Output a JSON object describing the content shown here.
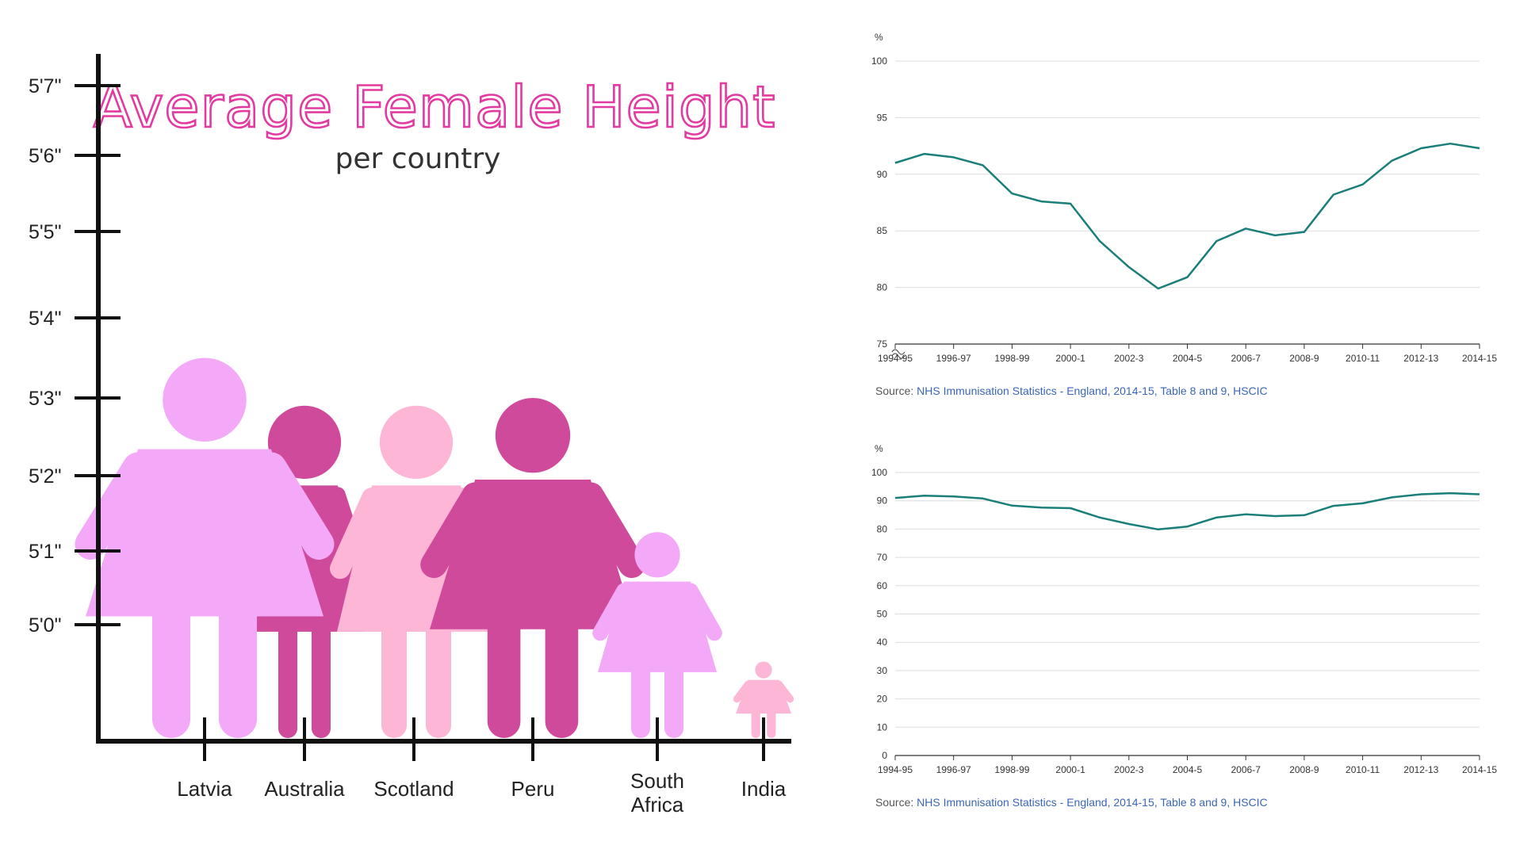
{
  "chart_data": [
    {
      "type": "bar",
      "title": "Average Female Height",
      "subtitle": "per country",
      "categories": [
        "Latvia",
        "Australia",
        "Scotland",
        "Peru",
        "South Africa",
        "India"
      ],
      "values": [
        5.35,
        5.29,
        5.29,
        5.3,
        5.125,
        4.95
      ],
      "y_tick_labels": [
        "5'0\"",
        "5'1\"",
        "5'2\"",
        "5'3\"",
        "5'4\"",
        "5'5\"",
        "5'6\"",
        "5'7\""
      ],
      "colors": [
        "#f3a8f8",
        "#cf4a9b",
        "#fdb6d6",
        "#cf4a9b",
        "#f3a8f8",
        "#fdb6d6"
      ],
      "grid": false
    },
    {
      "type": "line",
      "unit_label": "%",
      "x": [
        "1994-95",
        "1995-96",
        "1996-97",
        "1997-98",
        "1998-99",
        "1999-00",
        "2000-1",
        "2001-2",
        "2002-3",
        "2003-4",
        "2004-5",
        "2005-6",
        "2006-7",
        "2007-8",
        "2008-9",
        "2009-10",
        "2010-11",
        "2011-12",
        "2012-13",
        "2013-14",
        "2014-15"
      ],
      "x_tick_labels": [
        "1994-95",
        "1996-97",
        "1998-99",
        "2000-1",
        "2002-3",
        "2004-5",
        "2006-7",
        "2008-9",
        "2010-11",
        "2012-13",
        "2014-15"
      ],
      "y_ticks": [
        75,
        80,
        85,
        90,
        95,
        100
      ],
      "ylim": [
        75,
        100
      ],
      "axis_break": true,
      "series": [
        {
          "values": [
            91.0,
            91.8,
            91.5,
            90.8,
            88.3,
            87.6,
            87.4,
            84.1,
            81.8,
            79.9,
            80.9,
            84.1,
            85.2,
            84.6,
            84.9,
            88.2,
            89.1,
            91.2,
            92.3,
            92.7,
            92.3
          ]
        }
      ],
      "line_color": "#1a7f7a",
      "grid": true,
      "source_prefix": "Source: ",
      "source_link": "NHS Immunisation Statistics - England, 2014-15, Table 8 and 9, HSCIC"
    },
    {
      "type": "line",
      "unit_label": "%",
      "x": [
        "1994-95",
        "1995-96",
        "1996-97",
        "1997-98",
        "1998-99",
        "1999-00",
        "2000-1",
        "2001-2",
        "2002-3",
        "2003-4",
        "2004-5",
        "2005-6",
        "2006-7",
        "2007-8",
        "2008-9",
        "2009-10",
        "2010-11",
        "2011-12",
        "2012-13",
        "2013-14",
        "2014-15"
      ],
      "x_tick_labels": [
        "1994-95",
        "1996-97",
        "1998-99",
        "2000-1",
        "2002-3",
        "2004-5",
        "2006-7",
        "2008-9",
        "2010-11",
        "2012-13",
        "2014-15"
      ],
      "y_ticks": [
        0,
        10,
        20,
        30,
        40,
        50,
        60,
        70,
        80,
        90,
        100
      ],
      "ylim": [
        0,
        100
      ],
      "axis_break": false,
      "series": [
        {
          "values": [
            91.0,
            91.8,
            91.5,
            90.8,
            88.3,
            87.6,
            87.4,
            84.1,
            81.8,
            79.9,
            80.9,
            84.1,
            85.2,
            84.6,
            84.9,
            88.2,
            89.1,
            91.2,
            92.3,
            92.7,
            92.3
          ]
        }
      ],
      "line_color": "#1a7f7a",
      "grid": true,
      "source_prefix": "Source: ",
      "source_link": "NHS Immunisation Statistics - England, 2014-15, Table 8 and 9, HSCIC"
    }
  ]
}
